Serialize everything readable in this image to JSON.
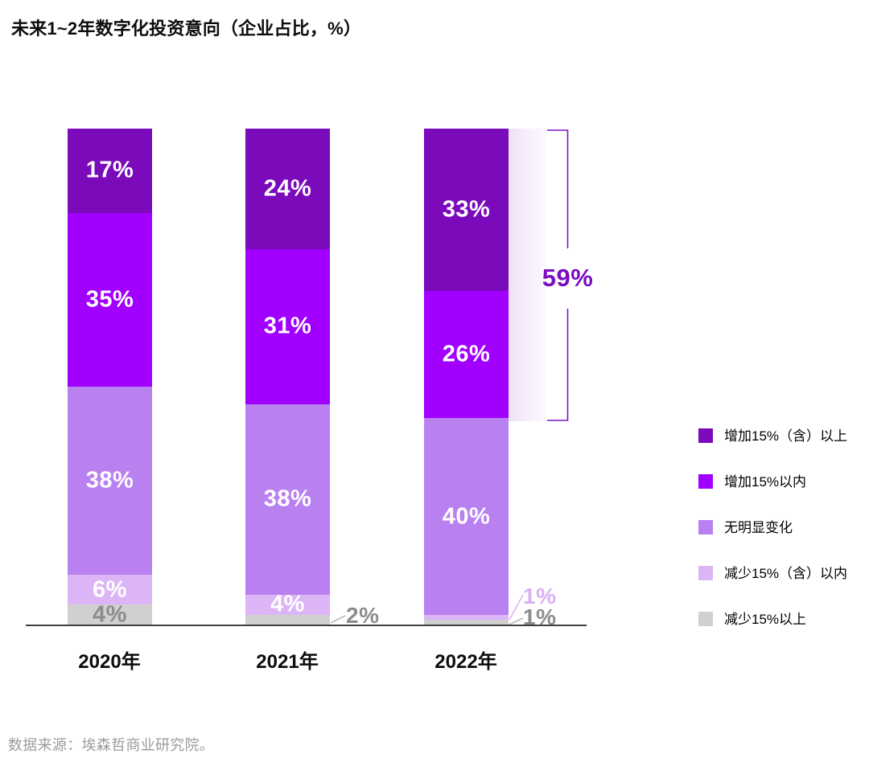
{
  "title": "未来1~2年数字化投资意向（企业占比，%）",
  "source": "数据来源：埃森哲商业研究院。",
  "chart_data": {
    "type": "bar",
    "stacked": true,
    "value_format": "percent",
    "title": "未来1~2年数字化投资意向（企业占比，%）",
    "categories": [
      "2020年",
      "2021年",
      "2022年"
    ],
    "series": [
      {
        "name": "增加15%（含）以上",
        "values": [
          17,
          24,
          33
        ],
        "color": "#7a0aba"
      },
      {
        "name": "增加15%以内",
        "values": [
          35,
          31,
          26
        ],
        "color": "#a100ff"
      },
      {
        "name": "无明显变化",
        "values": [
          38,
          38,
          40
        ],
        "color": "#b981ef"
      },
      {
        "name": "减少15%（含）以内",
        "values": [
          6,
          4,
          1
        ],
        "color": "#dbb5f5"
      },
      {
        "name": "减少15%以上",
        "values": [
          4,
          2,
          1
        ],
        "color": "#d1d0d0"
      }
    ],
    "label_modes": [
      [
        "in",
        "in",
        "in",
        "in",
        "in-gray"
      ],
      [
        "in",
        "in",
        "in",
        "in",
        "out"
      ],
      [
        "in",
        "in",
        "in",
        "out",
        "out"
      ]
    ],
    "annotation": {
      "label": "59%",
      "value": 59,
      "category": "2022年",
      "series_included": [
        "增加15%（含）以上",
        "增加15%以内"
      ],
      "bracket_color": "#7e10c8"
    },
    "legend_position": "right",
    "grid": false,
    "ylim": [
      0,
      100
    ]
  },
  "outside_labels": {
    "y2021_decrease_over15": "2%",
    "y2022_decrease_within15": "1%",
    "y2022_decrease_over15": "1%"
  },
  "colors": {
    "axis_line": "#3f3f3f",
    "outside_gray_text": "#8c8c8c",
    "outside_lavender_text": "#d8b0f2",
    "annotation_text": "#7a0dc2",
    "source_text": "#9b9b9b"
  }
}
